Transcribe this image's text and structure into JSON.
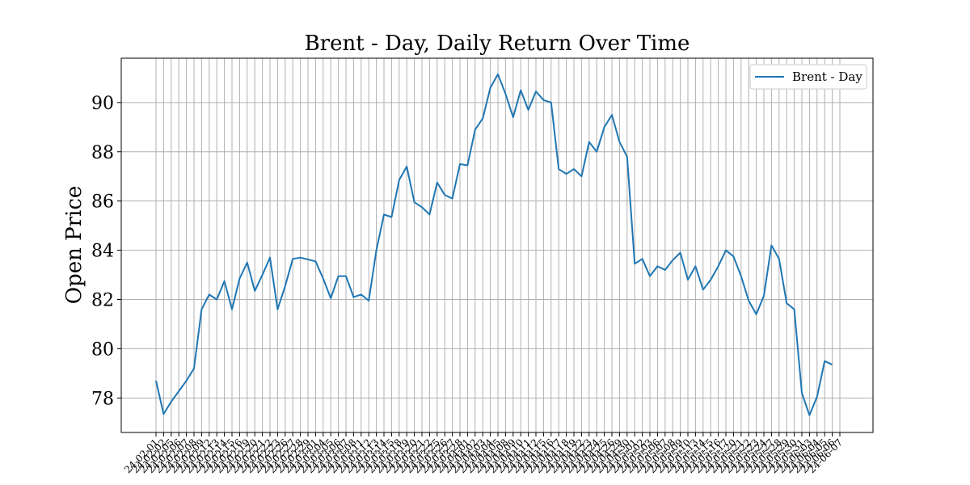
{
  "chart_data": {
    "type": "line",
    "title": "Brent - Day, Daily Return Over Time",
    "xlabel": "",
    "ylabel": "Open Price",
    "ylim": [
      76.6,
      91.8
    ],
    "yticks": [
      78,
      80,
      82,
      84,
      86,
      88,
      90
    ],
    "grid": true,
    "legend": "top-right",
    "line_color": "#1f77b4",
    "categories": [
      "24-02-01",
      "24-02-02",
      "24-02-05",
      "24-02-06",
      "24-02-07",
      "24-02-08",
      "24-02-09",
      "24-02-12",
      "24-02-13",
      "24-02-14",
      "24-02-15",
      "24-02-16",
      "24-02-19",
      "24-02-20",
      "24-02-21",
      "24-02-22",
      "24-02-23",
      "24-02-26",
      "24-02-27",
      "24-02-28",
      "24-02-29",
      "24-03-01",
      "24-03-04",
      "24-03-05",
      "24-03-06",
      "24-03-07",
      "24-03-08",
      "24-03-11",
      "24-03-12",
      "24-03-13",
      "24-03-14",
      "24-03-15",
      "24-03-18",
      "24-03-19",
      "24-03-20",
      "24-03-21",
      "24-03-22",
      "24-03-25",
      "24-03-26",
      "24-03-27",
      "24-03-28",
      "24-04-01",
      "24-04-02",
      "24-04-03",
      "24-04-04",
      "24-04-05",
      "24-04-08",
      "24-04-09",
      "24-04-10",
      "24-04-11",
      "24-04-12",
      "24-04-15",
      "24-04-16",
      "24-04-17",
      "24-04-18",
      "24-04-19",
      "24-04-22",
      "24-04-23",
      "24-04-24",
      "24-04-25",
      "24-04-26",
      "24-04-29",
      "24-04-30",
      "24-05-01",
      "24-05-02",
      "24-05-03",
      "24-05-06",
      "24-05-07",
      "24-05-08",
      "24-05-09",
      "24-05-10",
      "24-05-13",
      "24-05-14",
      "24-05-15",
      "24-05-16",
      "24-05-17",
      "24-05-20",
      "24-05-21",
      "24-05-22",
      "24-05-23",
      "24-05-24",
      "24-05-27",
      "24-05-28",
      "24-05-29",
      "24-05-30",
      "24-05-31",
      "24-06-03",
      "24-06-04",
      "24-06-05",
      "24-06-06",
      "24-06-07"
    ],
    "x_tick_indices": [
      0,
      1,
      2,
      3,
      4,
      5,
      6,
      7,
      8,
      9,
      10,
      11,
      12,
      13,
      14,
      15,
      16,
      17,
      18,
      19,
      20,
      21,
      22,
      23,
      24,
      25,
      26,
      27,
      28,
      29,
      30,
      31,
      32,
      33,
      34,
      35,
      36,
      37,
      38,
      39,
      40,
      41,
      42,
      43,
      44,
      45,
      46,
      47,
      48,
      49,
      50,
      51,
      52,
      53,
      54,
      55,
      56,
      57,
      58,
      59,
      60,
      61,
      62,
      63,
      64,
      65,
      66,
      67,
      68,
      69,
      70,
      71,
      72,
      73,
      74,
      75,
      76,
      77,
      78,
      79,
      80,
      81,
      82,
      83,
      84,
      85,
      86,
      87,
      88,
      89,
      90
    ],
    "series": [
      {
        "name": "Brent - Day",
        "points": [
          [
            0,
            78.7
          ],
          [
            1,
            77.35
          ],
          [
            2,
            77.85
          ],
          [
            4,
            78.7
          ],
          [
            5,
            79.2
          ],
          [
            6,
            81.6
          ],
          [
            7,
            82.2
          ],
          [
            8,
            82.0
          ],
          [
            9,
            82.75
          ],
          [
            10,
            81.6
          ],
          [
            11,
            82.85
          ],
          [
            12,
            83.5
          ],
          [
            13,
            82.35
          ],
          [
            14,
            83.0
          ],
          [
            15,
            83.7
          ],
          [
            16,
            81.6
          ],
          [
            17,
            82.55
          ],
          [
            18,
            83.65
          ],
          [
            19,
            83.7
          ],
          [
            21,
            83.55
          ],
          [
            22,
            82.85
          ],
          [
            23,
            82.05
          ],
          [
            24,
            82.95
          ],
          [
            25,
            82.95
          ],
          [
            26,
            82.1
          ],
          [
            27,
            82.2
          ],
          [
            28,
            81.95
          ],
          [
            29,
            84.0
          ],
          [
            30,
            85.45
          ],
          [
            31,
            85.35
          ],
          [
            32,
            86.85
          ],
          [
            33,
            87.4
          ],
          [
            34,
            85.95
          ],
          [
            35,
            85.75
          ],
          [
            36,
            85.45
          ],
          [
            37,
            86.75
          ],
          [
            38,
            86.25
          ],
          [
            39,
            86.1
          ],
          [
            40,
            87.5
          ],
          [
            41,
            87.45
          ],
          [
            42,
            88.9
          ],
          [
            43,
            89.35
          ],
          [
            44,
            90.6
          ],
          [
            45,
            91.15
          ],
          [
            46,
            90.35
          ],
          [
            47,
            89.4
          ],
          [
            48,
            90.5
          ],
          [
            49,
            89.7
          ],
          [
            50,
            90.45
          ],
          [
            51,
            90.1
          ],
          [
            52,
            90.0
          ],
          [
            53,
            87.3
          ],
          [
            54,
            87.1
          ],
          [
            55,
            87.3
          ],
          [
            56,
            87.0
          ],
          [
            57,
            88.4
          ],
          [
            58,
            88.0
          ],
          [
            59,
            89.0
          ],
          [
            60,
            89.5
          ],
          [
            61,
            88.4
          ],
          [
            62,
            87.8
          ],
          [
            63,
            83.45
          ],
          [
            64,
            83.65
          ],
          [
            65,
            82.95
          ],
          [
            66,
            83.35
          ],
          [
            67,
            83.2
          ],
          [
            68,
            83.6
          ],
          [
            69,
            83.9
          ],
          [
            70,
            82.8
          ],
          [
            71,
            83.35
          ],
          [
            72,
            82.4
          ],
          [
            73,
            82.8
          ],
          [
            74,
            83.35
          ],
          [
            75,
            84.0
          ],
          [
            76,
            83.75
          ],
          [
            77,
            82.95
          ],
          [
            78,
            81.95
          ],
          [
            79,
            81.4
          ],
          [
            80,
            82.15
          ],
          [
            81,
            84.2
          ],
          [
            82,
            83.65
          ],
          [
            83,
            81.85
          ],
          [
            84,
            81.6
          ],
          [
            85,
            78.2
          ],
          [
            86,
            77.3
          ],
          [
            87,
            78.05
          ],
          [
            88,
            79.5
          ],
          [
            89,
            79.35
          ]
        ]
      }
    ]
  }
}
